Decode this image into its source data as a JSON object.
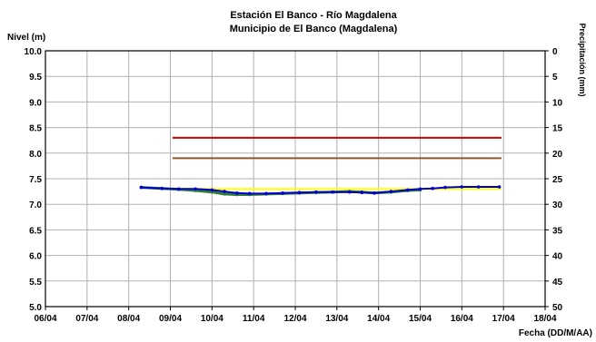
{
  "chart_data": {
    "type": "line",
    "title": "Estación El Banco - Río Magdalena",
    "subtitle": "Municipio de El Banco (Magdalena)",
    "ylabel": "Nivel (m)",
    "xlabel": "Fecha (DD/M/AA)",
    "y2label": "Precipitación (mm)",
    "ylim": [
      5.0,
      10.0
    ],
    "y2lim": [
      0,
      50
    ],
    "y2_inverted": true,
    "grid": true,
    "x_ticks": [
      "06/04",
      "07/04",
      "08/04",
      "09/04",
      "10/04",
      "11/04",
      "12/04",
      "13/04",
      "14/04",
      "15/04",
      "16/04",
      "17/04",
      "18/04"
    ],
    "y_ticks": [
      "5.0",
      "5.5",
      "6.0",
      "6.5",
      "7.0",
      "7.5",
      "8.0",
      "8.5",
      "9.0",
      "9.5",
      "10.0"
    ],
    "y2_ticks": [
      "0",
      "5",
      "10",
      "15",
      "20",
      "25",
      "30",
      "35",
      "40",
      "45",
      "50"
    ],
    "series": [
      {
        "color": "#0000cc",
        "style": "line",
        "x": [
          8.3,
          8.8,
          9.2,
          9.6,
          10.0,
          10.3,
          10.6,
          10.9,
          11.3,
          11.7,
          12.1,
          12.5,
          12.9,
          13.3,
          13.6,
          13.9,
          14.3,
          14.7,
          15.0,
          15.3,
          15.6,
          16.0,
          16.4,
          16.9
        ],
        "y": [
          7.33,
          7.31,
          7.3,
          7.3,
          7.28,
          7.25,
          7.22,
          7.21,
          7.21,
          7.22,
          7.23,
          7.24,
          7.24,
          7.24,
          7.23,
          7.22,
          7.25,
          7.28,
          7.3,
          7.31,
          7.33,
          7.34,
          7.34,
          7.34
        ]
      },
      {
        "color": "#2e7d32",
        "style": "line",
        "x": [
          8.3,
          8.8,
          9.2,
          9.6,
          10.0,
          10.3,
          10.6,
          10.9,
          11.3,
          11.7,
          12.1,
          12.5,
          12.9,
          13.3,
          13.6,
          13.9,
          14.3,
          14.7,
          15.0
        ],
        "y": [
          7.33,
          7.31,
          7.29,
          7.27,
          7.24,
          7.2,
          7.19,
          7.19,
          7.2,
          7.21,
          7.22,
          7.23,
          7.24,
          7.25,
          7.24,
          7.22,
          7.24,
          7.27,
          7.28
        ]
      },
      {
        "color": "#ffff00",
        "style": "line",
        "x": [
          9.05,
          16.95
        ],
        "y": [
          7.3,
          7.3
        ]
      },
      {
        "color": "#8b5a2b",
        "style": "line",
        "x": [
          9.05,
          16.95
        ],
        "y": [
          7.9,
          7.9
        ]
      },
      {
        "color": "#cc0000",
        "style": "line",
        "x": [
          9.05,
          16.95
        ],
        "y": [
          8.3,
          8.3
        ]
      }
    ]
  }
}
